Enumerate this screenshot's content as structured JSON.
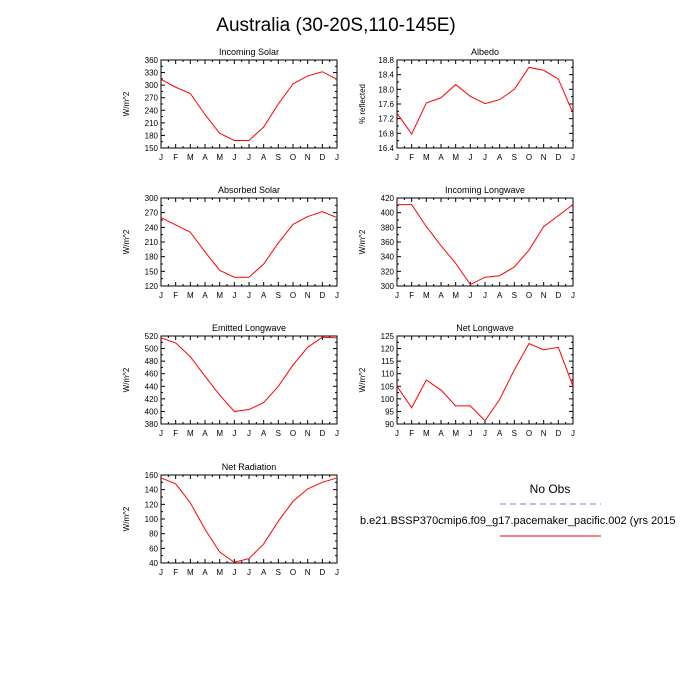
{
  "title": "Australia (30-20S,110-145E)",
  "months": [
    "J",
    "F",
    "M",
    "A",
    "M",
    "J",
    "J",
    "A",
    "S",
    "O",
    "N",
    "D",
    "J"
  ],
  "colors": {
    "model": "#ff0000",
    "obs": "#7b7bdc",
    "axis": "#000000"
  },
  "chart_data": [
    {
      "type": "line",
      "id": "incoming-solar",
      "title": "Incoming Solar",
      "ylabel": "W/m^2",
      "ylim": [
        150,
        360
      ],
      "yticks": [
        "150",
        "180",
        "210",
        "240",
        "270",
        "300",
        "330",
        "360"
      ],
      "ytick_values": [
        150,
        180,
        210,
        240,
        270,
        300,
        330,
        360
      ],
      "values": [
        314,
        295,
        280,
        230,
        185,
        168,
        168,
        200,
        255,
        303,
        322,
        332,
        314
      ]
    },
    {
      "type": "line",
      "id": "albedo",
      "title": "Albedo",
      "ylabel": "% reflected",
      "ylim": [
        16.4,
        18.8
      ],
      "yticks": [
        "16.4",
        "16.8",
        "17.2",
        "17.6",
        "18.0",
        "18.4",
        "18.8"
      ],
      "ytick_values": [
        16.4,
        16.8,
        17.2,
        17.6,
        18.0,
        18.4,
        18.8
      ],
      "values": [
        17.35,
        16.78,
        17.63,
        17.77,
        18.13,
        17.81,
        17.61,
        17.72,
        18.0,
        18.6,
        18.52,
        18.28,
        17.35
      ]
    },
    {
      "type": "line",
      "id": "absorbed-solar",
      "title": "Absorbed Solar",
      "ylabel": "W/m^2",
      "ylim": [
        120,
        300
      ],
      "yticks": [
        "120",
        "150",
        "180",
        "210",
        "240",
        "270",
        "300"
      ],
      "ytick_values": [
        120,
        150,
        180,
        210,
        240,
        270,
        300
      ],
      "values": [
        260,
        245,
        230,
        190,
        152,
        138,
        138,
        165,
        208,
        246,
        262,
        272,
        260
      ]
    },
    {
      "type": "line",
      "id": "incoming-longwave",
      "title": "Incoming Longwave",
      "ylabel": "W/m^2",
      "ylim": [
        300,
        420
      ],
      "yticks": [
        "300",
        "320",
        "340",
        "360",
        "380",
        "400",
        "420"
      ],
      "ytick_values": [
        300,
        320,
        340,
        360,
        380,
        400,
        420
      ],
      "values": [
        411,
        411,
        381,
        355,
        331,
        302,
        312,
        314,
        326,
        349,
        381,
        396,
        411
      ]
    },
    {
      "type": "line",
      "id": "emitted-longwave",
      "title": "Emitted Longwave",
      "ylabel": "W/m^2",
      "ylim": [
        380,
        520
      ],
      "yticks": [
        "380",
        "400",
        "420",
        "440",
        "460",
        "480",
        "500",
        "520"
      ],
      "ytick_values": [
        380,
        400,
        420,
        440,
        460,
        480,
        500,
        520
      ],
      "values": [
        517,
        509,
        487,
        456,
        426,
        400,
        403,
        414,
        440,
        474,
        502,
        518,
        517
      ]
    },
    {
      "type": "line",
      "id": "net-longwave",
      "title": "Net Longwave",
      "ylabel": "W/m^2",
      "ylim": [
        90,
        125
      ],
      "yticks": [
        "90",
        "95",
        "100",
        "105",
        "110",
        "115",
        "120",
        "125"
      ],
      "ytick_values": [
        90,
        95,
        100,
        105,
        110,
        115,
        120,
        125
      ],
      "values": [
        105,
        96.5,
        107.5,
        103.5,
        97.2,
        97.2,
        91.3,
        99.8,
        111.5,
        122,
        119.5,
        120.5,
        105
      ]
    },
    {
      "type": "line",
      "id": "net-radiation",
      "title": "Net Radiation",
      "ylabel": "W/m^2",
      "ylim": [
        40,
        160
      ],
      "yticks": [
        "40",
        "60",
        "80",
        "100",
        "120",
        "140",
        "160"
      ],
      "ytick_values": [
        40,
        60,
        80,
        100,
        120,
        140,
        160
      ],
      "values": [
        156,
        148,
        122,
        86,
        55,
        41,
        46,
        66,
        97,
        124,
        141,
        150,
        156
      ]
    }
  ],
  "legend": {
    "obs_label": "No Obs",
    "model_label": "b.e21.BSSP370cmip6.f09_g17.pacemaker_pacific.002 (yrs 2015"
  }
}
